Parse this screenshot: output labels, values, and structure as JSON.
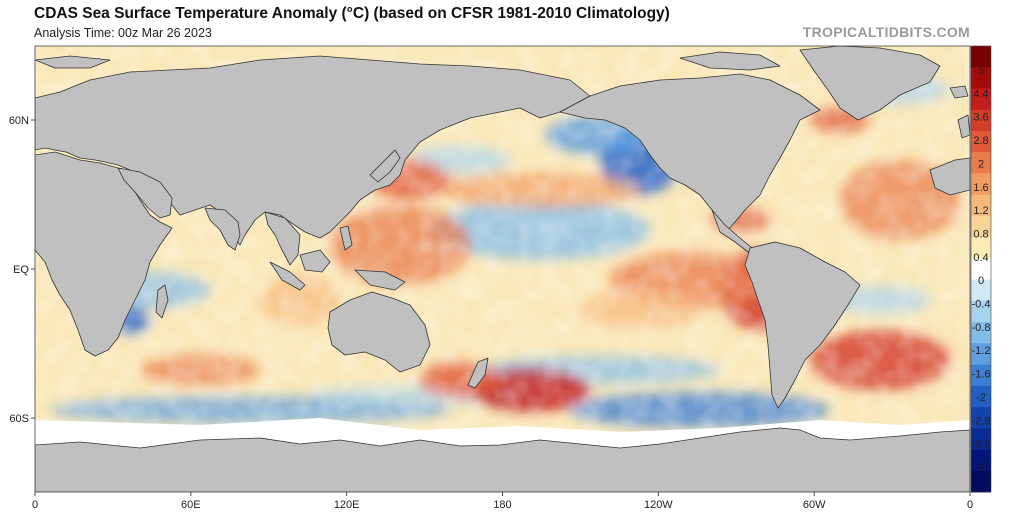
{
  "header": {
    "title": "CDAS Sea Surface Temperature Anomaly (°C) (based on CFSR 1981-2010 Climatology)",
    "analysis_time": "Analysis Time: 00z Mar 26 2023",
    "credit": "TROPICALTIDBITS.COM"
  },
  "map": {
    "projection": "equirectangular",
    "lon_axis": [
      "0",
      "60E",
      "120E",
      "180",
      "120W",
      "60W",
      "0"
    ],
    "lat_axis": [
      "60N",
      "EQ",
      "60S"
    ],
    "land_color": "#c0c0c0",
    "ice_color": "#ffffff"
  },
  "colorbar": {
    "labels": [
      "5",
      "4.4",
      "3.6",
      "2.8",
      "2",
      "1.6",
      "1.2",
      "0.8",
      "0.4",
      "0",
      "-0.4",
      "-0.8",
      "-1.2",
      "-1.6",
      "-2",
      "-2.8",
      "-3.6",
      "-5"
    ],
    "colors": [
      "#7a0000",
      "#a30a0a",
      "#c21d1d",
      "#d43c2a",
      "#e05a3a",
      "#ea7c4c",
      "#f29c62",
      "#f6b97c",
      "#f9d496",
      "#fdebb4",
      "#ffffff",
      "#cfe9f7",
      "#a6d3f0",
      "#82bce9",
      "#5f9fe0",
      "#3d7fd4",
      "#235ec4",
      "#1343ad",
      "#0a2b93",
      "#02167a",
      "#000a5e"
    ]
  }
}
